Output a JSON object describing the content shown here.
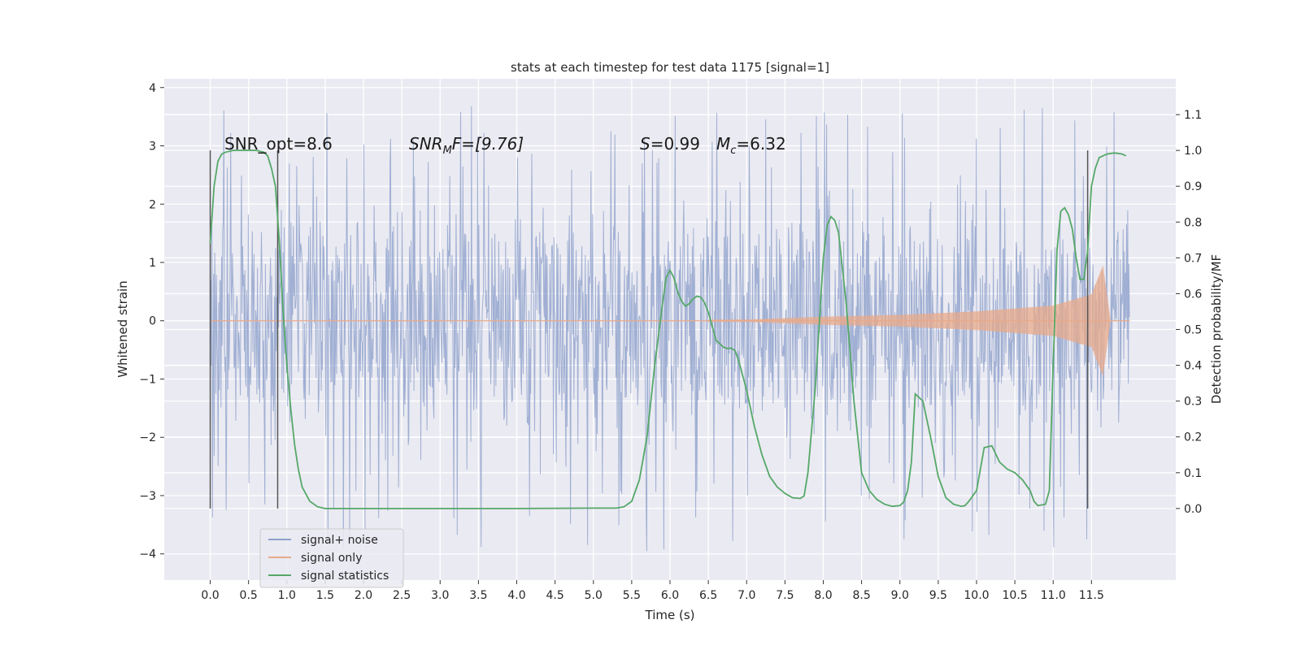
{
  "chart_data": {
    "type": "line",
    "title": "stats at each timestep for test data 1175 [signal=1]",
    "xlabel": "Time (s)",
    "ylabel_left": "Whitened strain",
    "ylabel_right": "Detection probability/MF",
    "xlim": [
      -0.6,
      12.6
    ],
    "ylim_left": [
      -4.45,
      4.15
    ],
    "ylim_right": [
      -0.2,
      1.2
    ],
    "x_ticks": [
      "0.0",
      "0.5",
      "1.0",
      "1.5",
      "2.0",
      "2.5",
      "3.0",
      "3.5",
      "4.0",
      "4.5",
      "5.0",
      "5.5",
      "6.0",
      "6.5",
      "7.0",
      "7.5",
      "8.0",
      "8.5",
      "9.0",
      "9.5",
      "10.0",
      "10.5",
      "11.0",
      "11.5"
    ],
    "y_ticks_left": [
      "4",
      "3",
      "2",
      "1",
      "0",
      "−1",
      "−2",
      "−3",
      "−4"
    ],
    "y_ticks_right": [
      "1.1",
      "1.0",
      "0.9",
      "0.8",
      "0.7",
      "0.6",
      "0.5",
      "0.4",
      "0.3",
      "0.2",
      "0.1",
      "0.0"
    ],
    "grid": true,
    "legend_position": "lower-left",
    "annotations": {
      "snr_opt": "SNR_opt=8.6",
      "snr_mf_base": "SNR",
      "snr_mf_sub": "M",
      "snr_mf_rest": "F=[9.76]",
      "s_italic": "S",
      "s_rest": "=0.99",
      "mc_italic": "M",
      "mc_sub": "c",
      "mc_rest": "=6.32"
    },
    "vertical_markers": [
      0.0,
      0.88,
      11.45
    ],
    "series": [
      {
        "name": "signal+ noise",
        "color": "#8da0cb",
        "x_range": [
          0.0,
          12.0
        ],
        "typical_range": [
          -1.8,
          1.8
        ],
        "peak_range": [
          -4.1,
          3.8
        ]
      },
      {
        "name": "signal only",
        "color": "#e8a98a",
        "envelope": [
          {
            "x": 0.0,
            "amp": 0.0
          },
          {
            "x": 7.0,
            "amp": 0.02
          },
          {
            "x": 8.0,
            "amp": 0.07
          },
          {
            "x": 9.0,
            "amp": 0.1
          },
          {
            "x": 10.0,
            "amp": 0.16
          },
          {
            "x": 11.0,
            "amp": 0.26
          },
          {
            "x": 11.5,
            "amp": 0.45
          },
          {
            "x": 11.65,
            "amp": 0.95
          },
          {
            "x": 11.75,
            "amp": 0.0
          },
          {
            "x": 12.0,
            "amp": 0.0
          }
        ]
      },
      {
        "name": "signal statistics",
        "color": "#55a868",
        "x": [
          0.0,
          0.05,
          0.1,
          0.15,
          0.2,
          0.3,
          0.4,
          0.5,
          0.6,
          0.7,
          0.75,
          0.8,
          0.85,
          0.9,
          0.95,
          1.0,
          1.05,
          1.1,
          1.15,
          1.2,
          1.3,
          1.4,
          1.5,
          2.0,
          3.0,
          4.0,
          5.0,
          5.3,
          5.4,
          5.5,
          5.6,
          5.7,
          5.8,
          5.9,
          5.95,
          6.0,
          6.05,
          6.1,
          6.15,
          6.2,
          6.25,
          6.3,
          6.35,
          6.4,
          6.45,
          6.5,
          6.55,
          6.6,
          6.7,
          6.75,
          6.8,
          6.85,
          6.9,
          7.0,
          7.1,
          7.2,
          7.3,
          7.4,
          7.5,
          7.6,
          7.7,
          7.75,
          7.8,
          7.9,
          8.0,
          8.05,
          8.1,
          8.15,
          8.2,
          8.3,
          8.4,
          8.5,
          8.6,
          8.7,
          8.8,
          8.9,
          9.0,
          9.05,
          9.1,
          9.15,
          9.2,
          9.3,
          9.4,
          9.5,
          9.6,
          9.7,
          9.8,
          9.85,
          9.9,
          10.0,
          10.1,
          10.2,
          10.3,
          10.4,
          10.5,
          10.6,
          10.7,
          10.75,
          10.8,
          10.9,
          10.95,
          11.0,
          11.05,
          11.1,
          11.15,
          11.2,
          11.25,
          11.3,
          11.35,
          11.4,
          11.45,
          11.5,
          11.55,
          11.6,
          11.7,
          11.8,
          11.9,
          11.95
        ],
        "y": [
          0.74,
          0.9,
          0.97,
          0.99,
          0.995,
          1.0,
          1.0,
          1.0,
          1.0,
          0.995,
          0.985,
          0.95,
          0.9,
          0.75,
          0.55,
          0.4,
          0.28,
          0.18,
          0.11,
          0.06,
          0.02,
          0.005,
          0.0,
          0.0,
          0.0,
          0.0,
          0.001,
          0.001,
          0.005,
          0.02,
          0.08,
          0.2,
          0.4,
          0.57,
          0.645,
          0.665,
          0.645,
          0.605,
          0.58,
          0.565,
          0.572,
          0.585,
          0.593,
          0.59,
          0.575,
          0.548,
          0.51,
          0.47,
          0.45,
          0.447,
          0.448,
          0.44,
          0.41,
          0.33,
          0.23,
          0.15,
          0.09,
          0.06,
          0.042,
          0.03,
          0.028,
          0.035,
          0.1,
          0.35,
          0.7,
          0.79,
          0.815,
          0.805,
          0.77,
          0.57,
          0.3,
          0.1,
          0.05,
          0.025,
          0.012,
          0.006,
          0.008,
          0.018,
          0.05,
          0.13,
          0.32,
          0.3,
          0.2,
          0.09,
          0.03,
          0.012,
          0.006,
          0.008,
          0.02,
          0.05,
          0.17,
          0.175,
          0.13,
          0.11,
          0.1,
          0.08,
          0.05,
          0.02,
          0.008,
          0.012,
          0.05,
          0.4,
          0.72,
          0.83,
          0.84,
          0.82,
          0.78,
          0.7,
          0.64,
          0.64,
          0.72,
          0.9,
          0.95,
          0.98,
          0.99,
          0.993,
          0.99,
          0.985
        ]
      }
    ]
  }
}
